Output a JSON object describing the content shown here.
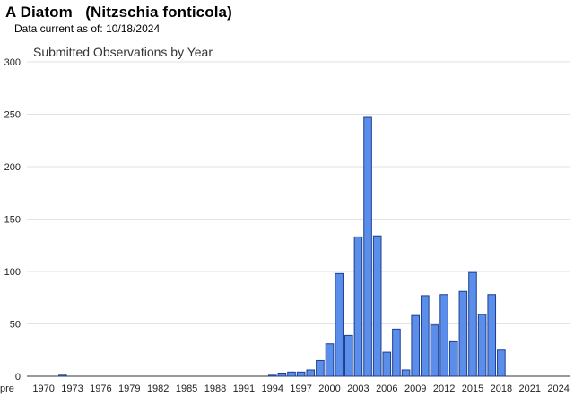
{
  "header": {
    "title": "A Diatom   (Nitzschia fonticola)",
    "data_current_label": "Data current as of:",
    "data_current_date": "10/18/2024"
  },
  "colors": {
    "bar_fill": "#5b8eea",
    "bar_stroke": "#1c3f8f",
    "grid": "#e2e2e2",
    "axis": "#333333"
  },
  "chart_data": {
    "type": "bar",
    "title": "Submitted Observations by Year",
    "xlabel": "",
    "ylabel": "",
    "ylim": [
      0,
      300
    ],
    "yticks": [
      0,
      50,
      100,
      150,
      200,
      250,
      300
    ],
    "grid": true,
    "legend": "none",
    "categories": [
      "pre 1970",
      "1970",
      "1971",
      "1972",
      "1973",
      "1974",
      "1975",
      "1976",
      "1977",
      "1978",
      "1979",
      "1980",
      "1981",
      "1982",
      "1983",
      "1984",
      "1985",
      "1986",
      "1987",
      "1988",
      "1989",
      "1990",
      "1991",
      "1992",
      "1993",
      "1994",
      "1995",
      "1996",
      "1997",
      "1998",
      "1999",
      "2000",
      "2001",
      "2002",
      "2003",
      "2004",
      "2005",
      "2006",
      "2007",
      "2008",
      "2009",
      "2010",
      "2011",
      "2012",
      "2013",
      "2014",
      "2015",
      "2016",
      "2017",
      "2018",
      "2019",
      "2020",
      "2021",
      "2022",
      "2023",
      "2024"
    ],
    "tick_labels": [
      "pre",
      "1970",
      "1973",
      "1976",
      "1979",
      "1982",
      "1985",
      "1988",
      "1991",
      "1994",
      "1997",
      "2000",
      "2003",
      "2006",
      "2009",
      "2012",
      "2015",
      "2018",
      "2021",
      "2024"
    ],
    "values": [
      0,
      0,
      0,
      1,
      0,
      0,
      0,
      0,
      0,
      0,
      0,
      0,
      0,
      0,
      0,
      0,
      0,
      0,
      0,
      0,
      0,
      0,
      0,
      0,
      0,
      1,
      3,
      4,
      4,
      6,
      15,
      31,
      98,
      39,
      133,
      247,
      134,
      23,
      45,
      6,
      58,
      77,
      49,
      78,
      33,
      81,
      99,
      59,
      78,
      25,
      0,
      0,
      0,
      0,
      0,
      0
    ]
  }
}
